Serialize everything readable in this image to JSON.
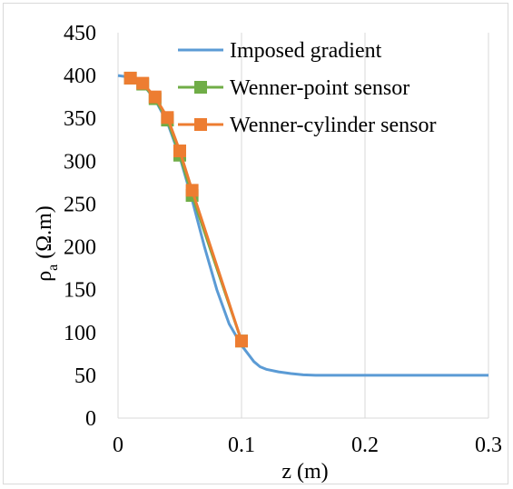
{
  "chart_data": {
    "type": "line",
    "title": "",
    "xlabel": "z (m)",
    "ylabel_main": "ρ",
    "ylabel_sub": "a",
    "ylabel_unit": " (Ω.m)",
    "xlim": [
      0,
      0.3
    ],
    "ylim": [
      0,
      450
    ],
    "x_ticks": [
      "0",
      "0.1",
      "0.2",
      "0.3"
    ],
    "x_tick_values": [
      0,
      0.1,
      0.2,
      0.3
    ],
    "y_ticks": [
      "0",
      "50",
      "100",
      "150",
      "200",
      "250",
      "300",
      "350",
      "400",
      "450"
    ],
    "y_tick_values": [
      0,
      50,
      100,
      150,
      200,
      250,
      300,
      350,
      400,
      450
    ],
    "grid": "vertical",
    "legend_position": "top-right",
    "series": [
      {
        "name": "Imposed gradient",
        "color": "#5B9BD5",
        "marker": "none",
        "x": [
          0,
          0.01,
          0.02,
          0.03,
          0.04,
          0.05,
          0.06,
          0.07,
          0.08,
          0.09,
          0.1,
          0.11,
          0.115,
          0.12,
          0.13,
          0.14,
          0.15,
          0.16,
          0.18,
          0.2,
          0.25,
          0.3
        ],
        "y": [
          400,
          398,
          390,
          372,
          345,
          305,
          255,
          200,
          150,
          110,
          85,
          66,
          60,
          57,
          54,
          52,
          50.5,
          50,
          50,
          50,
          50,
          50
        ]
      },
      {
        "name": "Wenner-point sensor",
        "color": "#70AD47",
        "marker": "square",
        "x": [
          0.01,
          0.02,
          0.03,
          0.04,
          0.05,
          0.06,
          0.1
        ],
        "y": [
          397,
          390,
          373,
          348,
          307,
          260,
          90
        ]
      },
      {
        "name": "Wenner-cylinder sensor",
        "color": "#ED7D31",
        "marker": "square",
        "x": [
          0.01,
          0.02,
          0.03,
          0.04,
          0.05,
          0.06,
          0.1
        ],
        "y": [
          397,
          391,
          375,
          351,
          312,
          266,
          90
        ]
      }
    ]
  }
}
